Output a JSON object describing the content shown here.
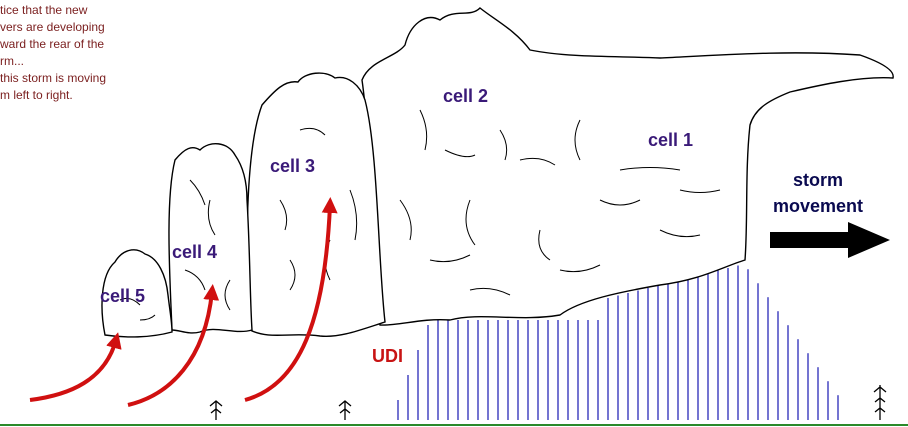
{
  "note": {
    "lines": [
      "tice that the new",
      "vers are developing",
      "ward the rear of the",
      "rm...",
      "this storm is moving",
      "m left to right."
    ]
  },
  "cells": [
    {
      "label": "cell 1"
    },
    {
      "label": "cell 2"
    },
    {
      "label": "cell 3"
    },
    {
      "label": "cell 4"
    },
    {
      "label": "cell 5"
    }
  ],
  "udi_label": "UDI",
  "movement_label": {
    "lines": [
      "storm",
      "movement"
    ]
  }
}
